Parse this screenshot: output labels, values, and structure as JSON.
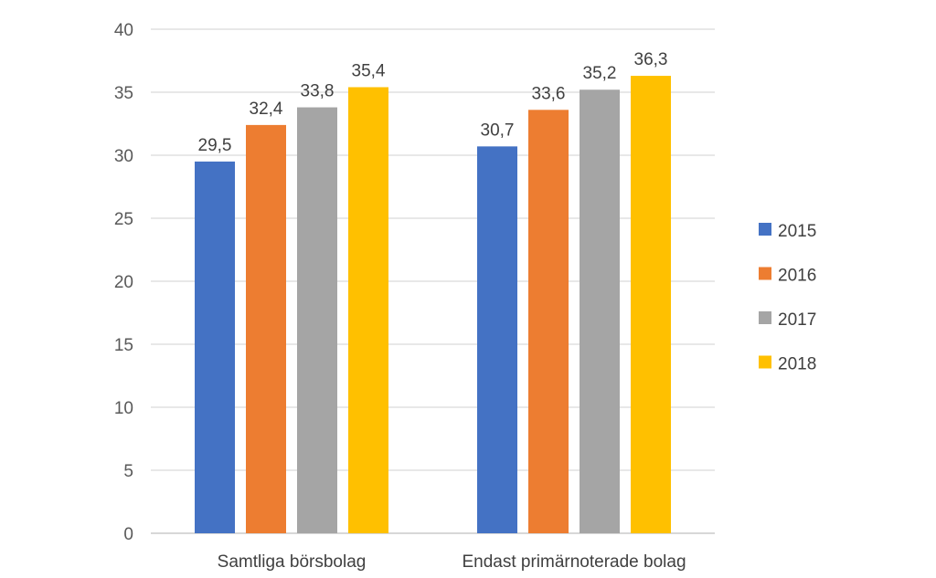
{
  "chart_data": {
    "type": "bar",
    "categories": [
      "Samtliga börsbolag",
      "Endast primärnoterade bolag"
    ],
    "series": [
      {
        "name": "2015",
        "values": [
          29.5,
          30.7
        ],
        "labels": [
          "29,5",
          "30,7"
        ]
      },
      {
        "name": "2016",
        "values": [
          32.4,
          33.6
        ],
        "labels": [
          "32,4",
          "33,6"
        ]
      },
      {
        "name": "2017",
        "values": [
          33.8,
          35.2
        ],
        "labels": [
          "33,8",
          "35,2"
        ]
      },
      {
        "name": "2018",
        "values": [
          35.4,
          36.3
        ],
        "labels": [
          "35,4",
          "36,3"
        ]
      }
    ],
    "ylim": [
      0,
      40
    ],
    "yticks": [
      0,
      5,
      10,
      15,
      20,
      25,
      30,
      35,
      40
    ],
    "grid": true,
    "legend_position": "right",
    "colors": [
      "#4472c4",
      "#ed7d31",
      "#a5a5a5",
      "#ffc000"
    ]
  }
}
